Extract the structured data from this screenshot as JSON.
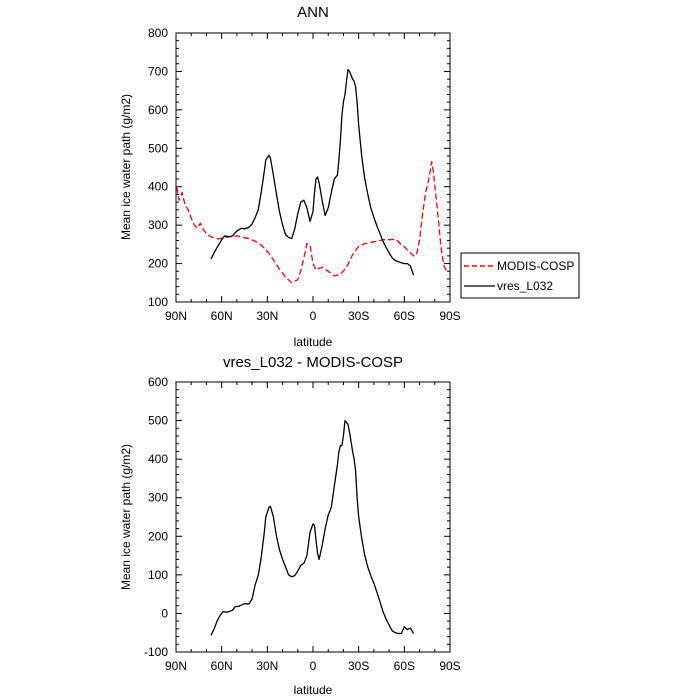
{
  "chart_data": [
    {
      "type": "line",
      "title": "ANN",
      "xlabel": "latitude",
      "ylabel": "Mean ice water path (g/m2)",
      "xlim": [
        -90,
        90
      ],
      "ylim": [
        100,
        800
      ],
      "xticks": [
        -90,
        -60,
        -30,
        0,
        30,
        60,
        90
      ],
      "xtick_labels": [
        "90N",
        "60N",
        "30N",
        "0",
        "30S",
        "60S",
        "90S"
      ],
      "yticks": [
        100,
        200,
        300,
        400,
        500,
        600,
        700,
        800
      ],
      "ytick_labels": [
        "100",
        "200",
        "300",
        "400",
        "500",
        "600",
        "700",
        "800"
      ],
      "legend_position": "right",
      "series": [
        {
          "name": "MODIS-COSP",
          "color": "#ff0000",
          "dash": "dashed",
          "x": [
            -89.5,
            -88,
            -86,
            -84,
            -82,
            -80,
            -78,
            -76,
            -74,
            -72,
            -70,
            -68,
            -66,
            -62,
            -58,
            -54,
            -50,
            -46,
            -42,
            -38,
            -34,
            -30,
            -26,
            -22,
            -18,
            -14,
            -10,
            -8,
            -6,
            -4,
            -2,
            0,
            2,
            4,
            6,
            8,
            10,
            14,
            18,
            22,
            26,
            30,
            34,
            38,
            42,
            46,
            50,
            54,
            56,
            58,
            60,
            62,
            64,
            66,
            68,
            70,
            72,
            74,
            76,
            78,
            79,
            80,
            82,
            84,
            86,
            88
          ],
          "y": [
            398,
            365,
            385,
            352,
            340,
            318,
            300,
            292,
            305,
            288,
            278,
            272,
            268,
            264,
            268,
            270,
            272,
            268,
            265,
            258,
            248,
            232,
            210,
            185,
            165,
            150,
            158,
            182,
            215,
            252,
            248,
            200,
            183,
            188,
            190,
            185,
            180,
            168,
            172,
            190,
            223,
            245,
            252,
            255,
            258,
            262,
            262,
            263,
            258,
            248,
            244,
            235,
            228,
            220,
            222,
            262,
            330,
            385,
            418,
            465,
            440,
            405,
            330,
            245,
            195,
            178
          ]
        },
        {
          "name": "vres_L032",
          "color": "#000000",
          "dash": "solid",
          "x": [
            -67,
            -65,
            -63,
            -60,
            -58,
            -55,
            -53,
            -50,
            -47,
            -45,
            -42,
            -40,
            -38,
            -36,
            -34,
            -32,
            -31,
            -30,
            -29,
            -28,
            -26,
            -24,
            -22,
            -20,
            -18,
            -16,
            -14,
            -12,
            -10,
            -8,
            -6,
            -4,
            -2,
            0,
            1,
            2,
            3,
            4,
            6,
            8,
            10,
            12,
            14,
            16,
            17,
            18,
            19,
            20,
            21,
            22,
            23,
            24,
            25,
            26,
            27,
            28,
            29,
            30,
            32,
            34,
            36,
            38,
            40,
            42,
            44,
            46,
            48,
            50,
            52,
            54,
            56,
            58,
            60,
            62,
            64,
            66
          ],
          "y": [
            212,
            228,
            242,
            262,
            272,
            270,
            272,
            285,
            292,
            290,
            295,
            303,
            320,
            340,
            385,
            440,
            470,
            475,
            482,
            475,
            430,
            380,
            335,
            300,
            275,
            268,
            265,
            290,
            330,
            360,
            365,
            345,
            310,
            335,
            385,
            420,
            425,
            410,
            365,
            325,
            345,
            385,
            420,
            430,
            470,
            520,
            585,
            620,
            640,
            675,
            705,
            700,
            690,
            680,
            675,
            660,
            620,
            560,
            480,
            420,
            380,
            345,
            320,
            298,
            278,
            258,
            242,
            228,
            215,
            208,
            205,
            202,
            200,
            200,
            194,
            170
          ]
        }
      ]
    },
    {
      "type": "line",
      "title": "vres_L032 - MODIS-COSP",
      "xlabel": "latitude",
      "ylabel": "Mean ice water path (g/m2)",
      "xlim": [
        -90,
        90
      ],
      "ylim": [
        -100,
        600
      ],
      "xticks": [
        -90,
        -60,
        -30,
        0,
        30,
        60,
        90
      ],
      "xtick_labels": [
        "90N",
        "60N",
        "30N",
        "0",
        "30S",
        "60S",
        "90S"
      ],
      "yticks": [
        -100,
        0,
        100,
        200,
        300,
        400,
        500,
        600
      ],
      "ytick_labels": [
        "-100",
        "0",
        "100",
        "200",
        "300",
        "400",
        "500",
        "600"
      ],
      "series": [
        {
          "name": "vres_L032 - MODIS-COSP",
          "color": "#000000",
          "dash": "solid",
          "x": [
            -67,
            -65,
            -63,
            -61,
            -59,
            -57,
            -55,
            -53,
            -51,
            -49,
            -47,
            -45,
            -42,
            -40,
            -38,
            -36,
            -34,
            -32,
            -31,
            -30,
            -29,
            -28,
            -26,
            -24,
            -22,
            -20,
            -18,
            -16,
            -14,
            -12,
            -10,
            -8,
            -6,
            -4,
            -2,
            0,
            1,
            2,
            3,
            4,
            6,
            8,
            10,
            12,
            14,
            16,
            17,
            18,
            19,
            20,
            21,
            22,
            23,
            24,
            25,
            26,
            27,
            28,
            29,
            30,
            32,
            34,
            36,
            38,
            40,
            42,
            44,
            46,
            48,
            50,
            52,
            54,
            56,
            58,
            60,
            62,
            64,
            66
          ],
          "y": [
            -57,
            -40,
            -20,
            -5,
            5,
            3,
            5,
            8,
            18,
            18,
            22,
            25,
            25,
            38,
            75,
            98,
            145,
            210,
            250,
            262,
            275,
            278,
            250,
            200,
            165,
            140,
            120,
            100,
            95,
            98,
            110,
            125,
            130,
            150,
            210,
            232,
            228,
            190,
            155,
            140,
            175,
            220,
            255,
            275,
            330,
            385,
            420,
            435,
            435,
            460,
            500,
            495,
            490,
            470,
            445,
            420,
            400,
            370,
            300,
            250,
            195,
            150,
            120,
            98,
            78,
            55,
            30,
            5,
            -15,
            -30,
            -45,
            -50,
            -52,
            -52,
            -35,
            -42,
            -38,
            -52
          ]
        }
      ]
    }
  ]
}
